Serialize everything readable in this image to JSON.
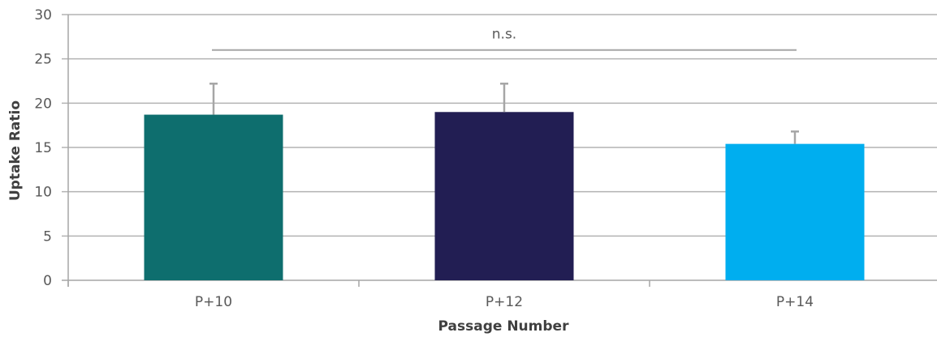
{
  "chart_data": {
    "type": "bar",
    "categories": [
      "P+10",
      "P+12",
      "P+14"
    ],
    "values": [
      18.7,
      19.0,
      15.4
    ],
    "errors": [
      3.5,
      3.2,
      1.4
    ],
    "colors": [
      "#0e6e6e",
      "#221e53",
      "#00aeef"
    ],
    "xlabel": "Passage Number",
    "ylabel": "Uptake Ratio",
    "ylim": [
      0,
      30
    ],
    "yticks": [
      0,
      5,
      10,
      15,
      20,
      25,
      30
    ],
    "grid": true,
    "legend": "none",
    "annotation": {
      "text": "n.s.",
      "from": "P+10",
      "to": "P+14",
      "y": 26
    }
  }
}
